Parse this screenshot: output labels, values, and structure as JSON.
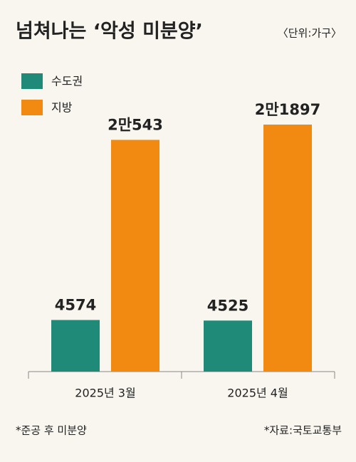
{
  "chart_data": {
    "type": "bar",
    "title": "넘쳐나는 ‘악성 미분양’",
    "subtitle": "〈단위:가구〉",
    "categories": [
      "2025년 3월",
      "2025년 4월"
    ],
    "series": [
      {
        "name": "수도권",
        "color": "#1f8a78",
        "values": [
          4574,
          4525
        ]
      },
      {
        "name": "지방",
        "color": "#f28a12",
        "values": [
          20543,
          21897
        ],
        "value_labels": [
          "2만543",
          "2만1897"
        ]
      }
    ],
    "notes": [
      "*준공 후 미분양",
      "*자료:국토교통부"
    ]
  }
}
